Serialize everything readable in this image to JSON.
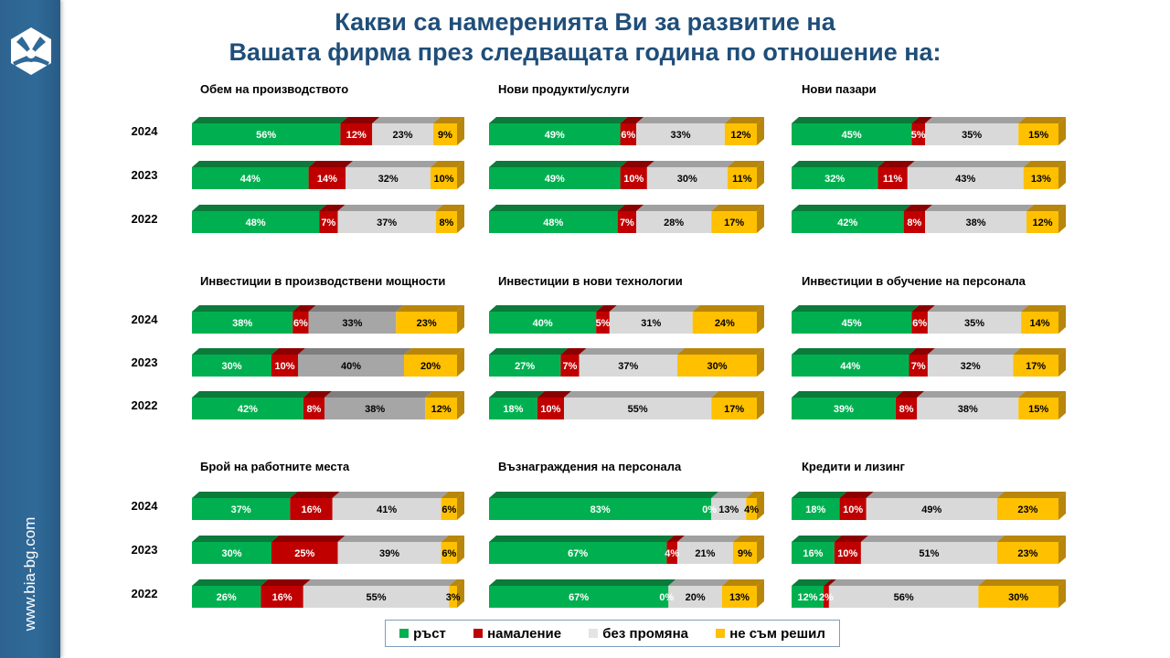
{
  "title_line1": "Какви са намеренията Ви за развитие на",
  "title_line2": "Вашата фирма през следващата година по отношение на:",
  "sidebar": {
    "website": "www.bia-bg.com",
    "logo_icon": "bia-hexagon-logo"
  },
  "colors": {
    "growth": "#00b050",
    "decrease": "#c00000",
    "no_change": "#d9d9d9",
    "no_change_dark": "#a6a6a6",
    "undecided": "#ffc000",
    "title": "#1f4e79"
  },
  "legend": [
    {
      "label": "ръст",
      "key": "growth"
    },
    {
      "label": "намаление",
      "key": "decrease"
    },
    {
      "label": "без промяна",
      "key": "no_change"
    },
    {
      "label": "не съм решил",
      "key": "undecided"
    }
  ],
  "years": [
    "2024",
    "2023",
    "2022"
  ],
  "chart_data": [
    {
      "type": "bar",
      "stacked": true,
      "orientation": "horizontal",
      "title": "Обем на производството",
      "categories": [
        "2024",
        "2023",
        "2022"
      ],
      "series": [
        {
          "name": "ръст",
          "values": [
            56,
            44,
            48
          ]
        },
        {
          "name": "намаление",
          "values": [
            12,
            14,
            7
          ]
        },
        {
          "name": "без промяна",
          "values": [
            23,
            32,
            37
          ]
        },
        {
          "name": "не съм решил",
          "values": [
            9,
            10,
            8
          ]
        }
      ]
    },
    {
      "type": "bar",
      "stacked": true,
      "orientation": "horizontal",
      "title": "Нови продукти/услуги",
      "categories": [
        "2024",
        "2023",
        "2022"
      ],
      "series": [
        {
          "name": "ръст",
          "values": [
            49,
            49,
            48
          ]
        },
        {
          "name": "намаление",
          "values": [
            6,
            10,
            7
          ]
        },
        {
          "name": "без промяна",
          "values": [
            33,
            30,
            28
          ]
        },
        {
          "name": "не съм решил",
          "values": [
            12,
            11,
            17
          ]
        }
      ]
    },
    {
      "type": "bar",
      "stacked": true,
      "orientation": "horizontal",
      "title": "Нови пазари",
      "categories": [
        "2024",
        "2023",
        "2022"
      ],
      "series": [
        {
          "name": "ръст",
          "values": [
            45,
            32,
            42
          ]
        },
        {
          "name": "намаление",
          "values": [
            5,
            11,
            8
          ]
        },
        {
          "name": "без промяна",
          "values": [
            35,
            43,
            38
          ]
        },
        {
          "name": "не съм решил",
          "values": [
            15,
            13,
            12
          ]
        }
      ]
    },
    {
      "type": "bar",
      "stacked": true,
      "orientation": "horizontal",
      "title": "Инвестиции в производствени мощности",
      "categories": [
        "2024",
        "2023",
        "2022"
      ],
      "dark_gray": true,
      "series": [
        {
          "name": "ръст",
          "values": [
            38,
            30,
            42
          ]
        },
        {
          "name": "намаление",
          "values": [
            6,
            10,
            8
          ]
        },
        {
          "name": "без промяна",
          "values": [
            33,
            40,
            38
          ]
        },
        {
          "name": "не съм решил",
          "values": [
            23,
            20,
            12
          ]
        }
      ]
    },
    {
      "type": "bar",
      "stacked": true,
      "orientation": "horizontal",
      "title": "Инвестиции в нови технологии",
      "categories": [
        "2024",
        "2023",
        "2022"
      ],
      "series": [
        {
          "name": "ръст",
          "values": [
            40,
            27,
            18
          ]
        },
        {
          "name": "намаление",
          "values": [
            5,
            7,
            10
          ]
        },
        {
          "name": "без промяна",
          "values": [
            31,
            37,
            55
          ]
        },
        {
          "name": "не съм решил",
          "values": [
            24,
            30,
            17
          ]
        }
      ]
    },
    {
      "type": "bar",
      "stacked": true,
      "orientation": "horizontal",
      "title": "Инвестиции в обучение на персонала",
      "categories": [
        "2024",
        "2023",
        "2022"
      ],
      "series": [
        {
          "name": "ръст",
          "values": [
            45,
            44,
            39
          ]
        },
        {
          "name": "намаление",
          "values": [
            6,
            7,
            8
          ]
        },
        {
          "name": "без промяна",
          "values": [
            35,
            32,
            38
          ]
        },
        {
          "name": "не съм решил",
          "values": [
            14,
            17,
            15
          ]
        }
      ]
    },
    {
      "type": "bar",
      "stacked": true,
      "orientation": "horizontal",
      "title": "Брой на работните места",
      "categories": [
        "2024",
        "2023",
        "2022"
      ],
      "series": [
        {
          "name": "ръст",
          "values": [
            37,
            30,
            26
          ]
        },
        {
          "name": "намаление",
          "values": [
            16,
            25,
            16
          ]
        },
        {
          "name": "без промяна",
          "values": [
            41,
            39,
            55
          ]
        },
        {
          "name": "не съм решил",
          "values": [
            6,
            6,
            3
          ]
        }
      ]
    },
    {
      "type": "bar",
      "stacked": true,
      "orientation": "horizontal",
      "title": "Възнаграждения на персонала",
      "categories": [
        "2024",
        "2023",
        "2022"
      ],
      "series": [
        {
          "name": "ръст",
          "values": [
            83,
            67,
            67
          ]
        },
        {
          "name": "намаление",
          "values": [
            0,
            4,
            0
          ]
        },
        {
          "name": "без промяна",
          "values": [
            13,
            21,
            20
          ]
        },
        {
          "name": "не съм решил",
          "values": [
            4,
            9,
            13
          ]
        }
      ]
    },
    {
      "type": "bar",
      "stacked": true,
      "orientation": "horizontal",
      "title": "Кредити и лизинг",
      "categories": [
        "2024",
        "2023",
        "2022"
      ],
      "series": [
        {
          "name": "ръст",
          "values": [
            18,
            16,
            12
          ]
        },
        {
          "name": "намаление",
          "values": [
            10,
            10,
            2
          ]
        },
        {
          "name": "без промяна",
          "values": [
            49,
            51,
            56
          ]
        },
        {
          "name": "не съм решил",
          "values": [
            23,
            23,
            30
          ]
        }
      ]
    }
  ]
}
